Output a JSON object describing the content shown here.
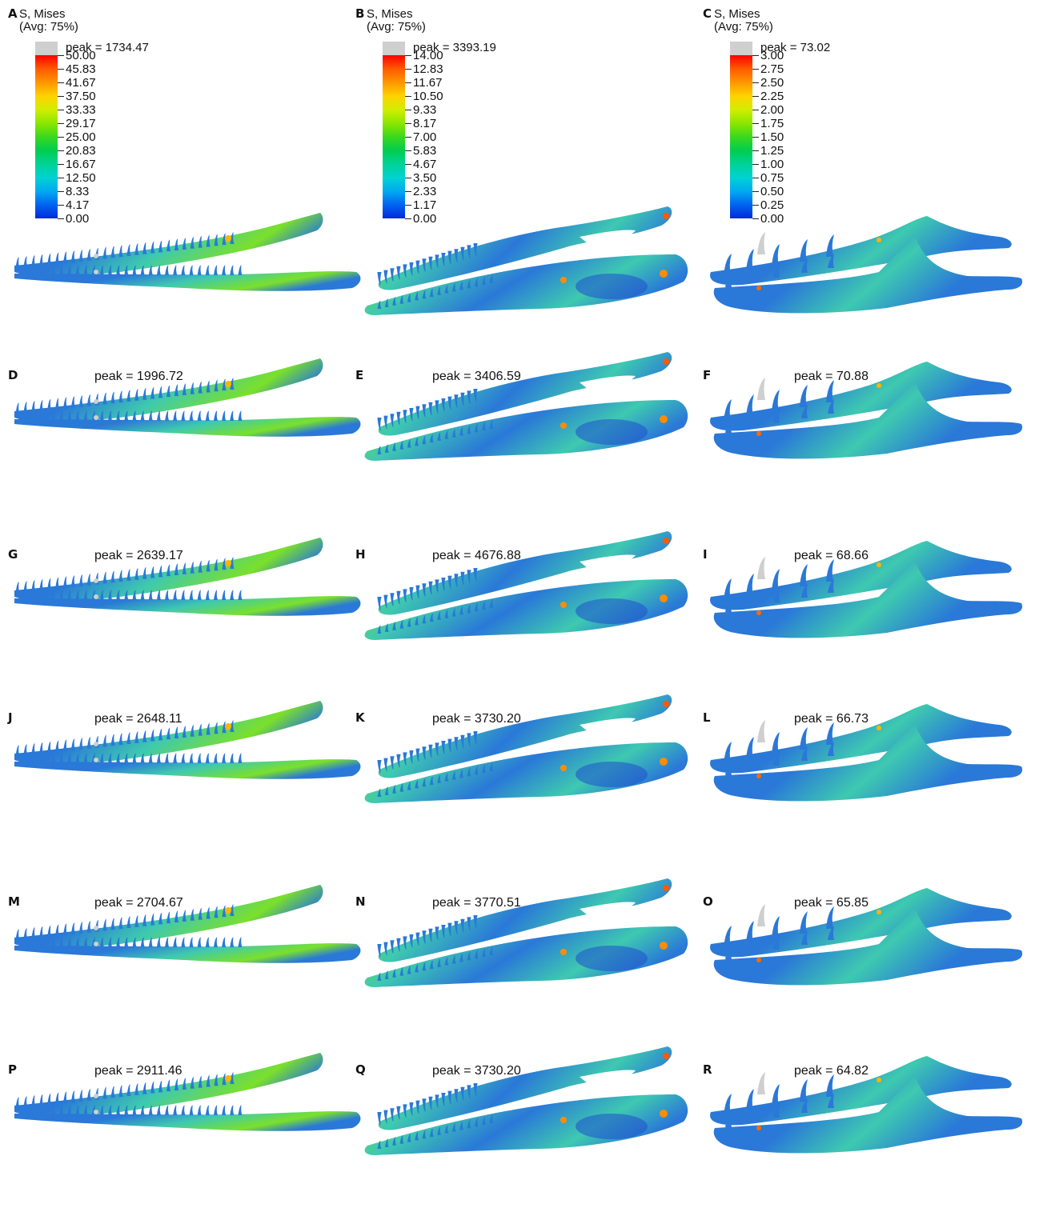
{
  "panels": [
    {
      "label": "A",
      "peak": "peak = 1734.47",
      "species": "gharial"
    },
    {
      "label": "B",
      "peak": "peak = 3393.19",
      "species": "croc"
    },
    {
      "label": "C",
      "peak": "peak = 73.02",
      "species": "fanged"
    },
    {
      "label": "D",
      "peak": "peak = 1996.72",
      "species": "gharial"
    },
    {
      "label": "E",
      "peak": "peak = 3406.59",
      "species": "croc"
    },
    {
      "label": "F",
      "peak": "peak = 70.88",
      "species": "fanged"
    },
    {
      "label": "G",
      "peak": "peak = 2639.17",
      "species": "gharial"
    },
    {
      "label": "H",
      "peak": "peak = 4676.88",
      "species": "croc"
    },
    {
      "label": "I",
      "peak": "peak = 68.66",
      "species": "fanged"
    },
    {
      "label": "J",
      "peak": "peak = 2648.11",
      "species": "gharial"
    },
    {
      "label": "K",
      "peak": "peak = 3730.20",
      "species": "croc"
    },
    {
      "label": "L",
      "peak": "peak = 66.73",
      "species": "fanged"
    },
    {
      "label": "M",
      "peak": "peak = 2704.67",
      "species": "gharial"
    },
    {
      "label": "N",
      "peak": "peak = 3770.51",
      "species": "croc"
    },
    {
      "label": "O",
      "peak": "peak = 65.85",
      "species": "fanged"
    },
    {
      "label": "P",
      "peak": "peak = 2911.46",
      "species": "gharial"
    },
    {
      "label": "Q",
      "peak": "peak = 3730.20",
      "species": "croc"
    },
    {
      "label": "R",
      "peak": "peak = 64.82",
      "species": "fanged"
    }
  ],
  "legends": [
    {
      "title": "S, Mises\n(Avg: 75%)",
      "values": [
        "50.00",
        "45.83",
        "41.67",
        "37.50",
        "33.33",
        "29.17",
        "25.00",
        "20.83",
        "16.67",
        "12.50",
        "8.33",
        "4.17",
        "0.00"
      ]
    },
    {
      "title": "S, Mises\n(Avg: 75%)",
      "values": [
        "14.00",
        "12.83",
        "11.67",
        "10.50",
        "9.33",
        "8.17",
        "7.00",
        "5.83",
        "4.67",
        "3.50",
        "2.33",
        "1.17",
        "0.00"
      ]
    },
    {
      "title": "S, Mises\n(Avg: 75%)",
      "values": [
        "3.00",
        "2.75",
        "2.50",
        "2.25",
        "2.00",
        "1.75",
        "1.50",
        "1.25",
        "1.00",
        "0.75",
        "0.50",
        "0.25",
        "0.00"
      ]
    }
  ],
  "colors": {
    "scale": [
      "#ff0000",
      "#ff5a00",
      "#ff9600",
      "#ffd200",
      "#d2ee00",
      "#8ce600",
      "#3cd81e",
      "#00cd50",
      "#00d296",
      "#00d2d2",
      "#00aaf0",
      "#0064f0",
      "#0028dc"
    ],
    "peak_fill": "#cfcfcf",
    "jaw_base": "#2a78d8",
    "jaw_mid": "#3ec9b0",
    "jaw_hot": "#7be02a"
  }
}
